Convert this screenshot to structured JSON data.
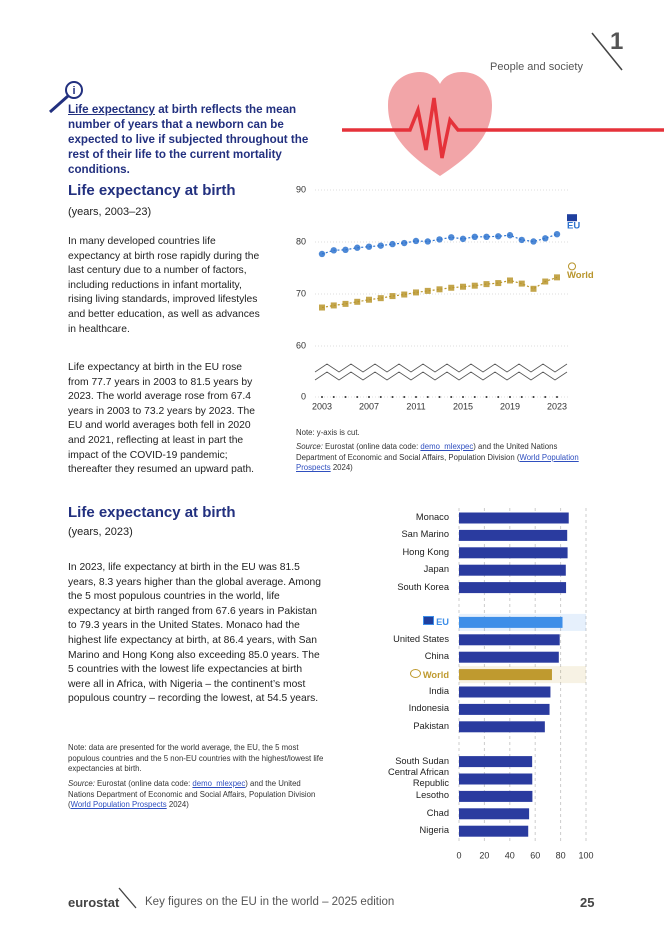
{
  "header": {
    "section": "People and society",
    "chapter": "1"
  },
  "intro": {
    "term": "Life expectancy",
    "text": " at birth reflects the mean number of years that a newborn can be expected to live if subjected throughout the rest of their life to the current mortality conditions."
  },
  "section1": {
    "title": "Life expectancy at birth",
    "subtitle": "(years, 2003–23)",
    "paragraphs": [
      "In many developed countries life expectancy at birth rose rapidly during the last century due to a number of factors, including reductions in infant mortality, rising living standards, improved lifestyles and better education, as well as advances in healthcare.",
      "Life expectancy at birth in the EU rose from 77.7 years in 2003 to 81.5 years by 2023. The world average rose from 67.4 years in 2003 to 73.2 years by 2023. The EU and world averages both fell in 2020 and 2021, reflecting at least in part the impact of the COVID-19 pandemic; thereafter they resumed an upward path."
    ],
    "note": "Note: y-axis is cut.",
    "source": {
      "label": "Source:",
      "text1": " Eurostat (online data code: ",
      "link1": "demo_mlexpec",
      "text2": ") and the United Nations Department of Economic and Social Affairs, Population Division (",
      "link2": "World Population Prospects",
      "text3": " 2024)"
    }
  },
  "section2": {
    "title": "Life expectancy at birth",
    "subtitle": "(years, 2023)",
    "paragraph": "In 2023, life expectancy at birth in the EU was 81.5 years, 8.3 years higher than the global average. Among the 5 most populous countries in the world, life expectancy at birth ranged from 67.6 years in Pakistan to 79.3 years in the United States. Monaco had the highest life expectancy at birth, at 86.4 years, with San Marino and Hong Kong also exceeding 85.0 years. The 5 countries with the lowest life expectancies at birth were all in Africa, with Nigeria – the continent’s most populous country – recording the lowest, at 54.5 years.",
    "note": "Note: data are presented for the world average, the EU, the 5 most populous countries and the 5 non-EU countries with the highest/lowest life expectancies at birth.",
    "source": {
      "label": "Source:",
      "text1": " Eurostat (online data code: ",
      "link1": "demo_mlexpec",
      "text2": ") and the United Nations Department of Economic and Social Affairs, Population Division (",
      "link2": "World Population Prospects",
      "text3": " 2024)"
    }
  },
  "chart_data": [
    {
      "type": "line",
      "y_axis_cut": true,
      "x": [
        2003,
        2004,
        2005,
        2006,
        2007,
        2008,
        2009,
        2010,
        2011,
        2012,
        2013,
        2014,
        2015,
        2016,
        2017,
        2018,
        2019,
        2020,
        2021,
        2022,
        2023
      ],
      "xticks": [
        2003,
        2007,
        2011,
        2015,
        2019,
        2023
      ],
      "xlim": [
        2003,
        2023
      ],
      "ylim": [
        0,
        90
      ],
      "yticks": [
        0,
        60,
        70,
        80,
        90
      ],
      "grid": true,
      "series": [
        {
          "name": "EU",
          "color": "#2f74cf",
          "values": [
            77.7,
            78.4,
            78.5,
            78.9,
            79.1,
            79.3,
            79.6,
            79.8,
            80.2,
            80.1,
            80.5,
            80.9,
            80.6,
            81.0,
            81.0,
            81.1,
            81.3,
            80.4,
            80.1,
            80.7,
            81.5
          ]
        },
        {
          "name": "World",
          "color": "#b8952c",
          "values": [
            67.4,
            67.8,
            68.1,
            68.5,
            68.9,
            69.2,
            69.6,
            69.9,
            70.3,
            70.6,
            70.9,
            71.2,
            71.4,
            71.6,
            71.9,
            72.1,
            72.6,
            72.0,
            71.0,
            72.4,
            73.2
          ]
        }
      ]
    },
    {
      "type": "bar",
      "orientation": "horizontal",
      "categories": [
        "Monaco",
        "San Marino",
        "Hong Kong",
        "Japan",
        "South Korea",
        null,
        "EU",
        "United States",
        "China",
        "World",
        "India",
        "Indonesia",
        "Pakistan",
        null,
        "South Sudan",
        "Central African Republic",
        "Lesotho",
        "Chad",
        "Nigeria"
      ],
      "values": [
        86.4,
        85.2,
        85.5,
        84.1,
        84.3,
        null,
        81.5,
        79.3,
        78.6,
        73.2,
        72.0,
        71.3,
        67.6,
        null,
        57.6,
        57.7,
        57.8,
        55.2,
        54.5
      ],
      "colors": [
        "#2a3b9f",
        "#2a3b9f",
        "#2a3b9f",
        "#2a3b9f",
        "#2a3b9f",
        null,
        "#3d8ee8",
        "#2a3b9f",
        "#2a3b9f",
        "#bf9a2f",
        "#2a3b9f",
        "#2a3b9f",
        "#2a3b9f",
        null,
        "#2a3b9f",
        "#2a3b9f",
        "#2a3b9f",
        "#2a3b9f",
        "#2a3b9f"
      ],
      "xlim": [
        0,
        100
      ],
      "xticks": [
        0,
        20,
        40,
        60,
        80,
        100
      ],
      "grid": true
    }
  ],
  "footer": {
    "brand": "eurostat",
    "publication": "Key figures on the EU in the world – 2025 edition",
    "page": "25"
  }
}
